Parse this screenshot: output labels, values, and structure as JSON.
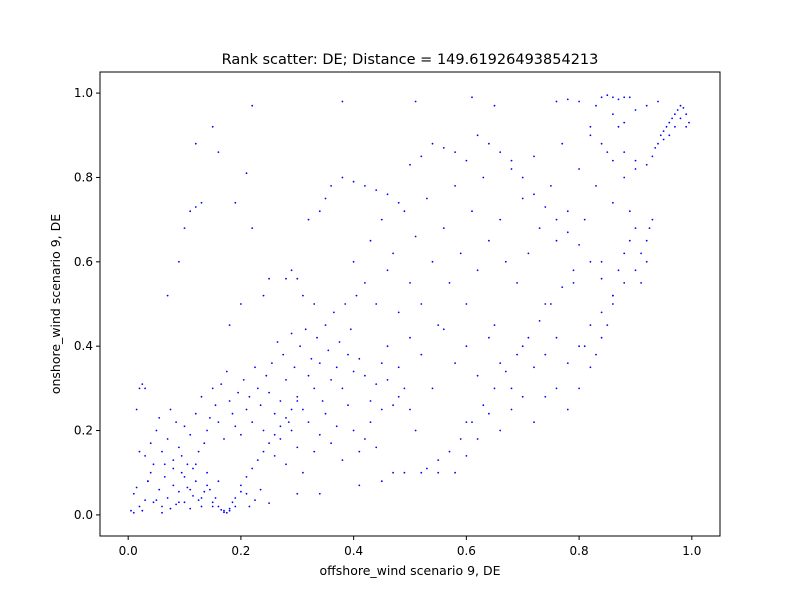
{
  "chart_data": {
    "type": "scatter",
    "title": "Rank scatter: DE; Distance = 149.61926493854213",
    "xlabel": "offshore_wind scenario 9, DE",
    "ylabel": "onshore_wind scenario 9, DE",
    "xlim": [
      -0.05,
      1.05
    ],
    "ylim": [
      -0.05,
      1.05
    ],
    "x_ticks": [
      0.0,
      0.2,
      0.4,
      0.6,
      0.8,
      1.0
    ],
    "x_tick_labels": [
      "0.0",
      "0.2",
      "0.4",
      "0.6",
      "0.8",
      "1.0"
    ],
    "y_ticks": [
      0.0,
      0.2,
      0.4,
      0.6,
      0.8,
      1.0
    ],
    "y_tick_labels": [
      "0.0",
      "0.2",
      "0.4",
      "0.6",
      "0.8",
      "1.0"
    ],
    "grid": false,
    "marker_color": "#0000ff",
    "points": [
      [
        0.005,
        0.01
      ],
      [
        0.01,
        0.005
      ],
      [
        0.01,
        0.05
      ],
      [
        0.015,
        0.065
      ],
      [
        0.02,
        0.02
      ],
      [
        0.025,
        0.01
      ],
      [
        0.03,
        0.035
      ],
      [
        0.035,
        0.08
      ],
      [
        0.04,
        0.1
      ],
      [
        0.045,
        0.12
      ],
      [
        0.05,
        0.035
      ],
      [
        0.055,
        0.06
      ],
      [
        0.06,
        0.02
      ],
      [
        0.065,
        0.09
      ],
      [
        0.07,
        0.04
      ],
      [
        0.075,
        0.015
      ],
      [
        0.08,
        0.07
      ],
      [
        0.085,
        0.025
      ],
      [
        0.09,
        0.055
      ],
      [
        0.095,
        0.1
      ],
      [
        0.1,
        0.03
      ],
      [
        0.105,
        0.065
      ],
      [
        0.11,
        0.015
      ],
      [
        0.115,
        0.045
      ],
      [
        0.12,
        0.08
      ],
      [
        0.125,
        0.035
      ],
      [
        0.13,
        0.02
      ],
      [
        0.135,
        0.055
      ],
      [
        0.14,
        0.1
      ],
      [
        0.145,
        0.06
      ],
      [
        0.15,
        0.02
      ],
      [
        0.155,
        0.04
      ],
      [
        0.16,
        0.08
      ],
      [
        0.165,
        0.012
      ],
      [
        0.17,
        0.01
      ],
      [
        0.175,
        0.005
      ],
      [
        0.18,
        0.015
      ],
      [
        0.185,
        0.03
      ],
      [
        0.19,
        0.02
      ],
      [
        0.2,
        0.055
      ],
      [
        0.21,
        0.05
      ],
      [
        0.215,
        0.02
      ],
      [
        0.225,
        0.035
      ],
      [
        0.235,
        0.06
      ],
      [
        0.25,
        0.028
      ],
      [
        0.02,
        0.15
      ],
      [
        0.03,
        0.14
      ],
      [
        0.04,
        0.17
      ],
      [
        0.05,
        0.2
      ],
      [
        0.055,
        0.23
      ],
      [
        0.06,
        0.15
      ],
      [
        0.065,
        0.12
      ],
      [
        0.07,
        0.18
      ],
      [
        0.075,
        0.25
      ],
      [
        0.08,
        0.13
      ],
      [
        0.085,
        0.22
      ],
      [
        0.09,
        0.16
      ],
      [
        0.095,
        0.14
      ],
      [
        0.1,
        0.21
      ],
      [
        0.105,
        0.12
      ],
      [
        0.11,
        0.19
      ],
      [
        0.115,
        0.11
      ],
      [
        0.12,
        0.24
      ],
      [
        0.125,
        0.15
      ],
      [
        0.13,
        0.28
      ],
      [
        0.135,
        0.17
      ],
      [
        0.14,
        0.2
      ],
      [
        0.145,
        0.23
      ],
      [
        0.15,
        0.3
      ],
      [
        0.155,
        0.26
      ],
      [
        0.16,
        0.22
      ],
      [
        0.165,
        0.31
      ],
      [
        0.17,
        0.18
      ],
      [
        0.175,
        0.34
      ],
      [
        0.18,
        0.27
      ],
      [
        0.185,
        0.24
      ],
      [
        0.19,
        0.21
      ],
      [
        0.195,
        0.29
      ],
      [
        0.2,
        0.19
      ],
      [
        0.205,
        0.32
      ],
      [
        0.21,
        0.25
      ],
      [
        0.215,
        0.28
      ],
      [
        0.22,
        0.22
      ],
      [
        0.225,
        0.35
      ],
      [
        0.23,
        0.3
      ],
      [
        0.235,
        0.26
      ],
      [
        0.24,
        0.2
      ],
      [
        0.245,
        0.33
      ],
      [
        0.25,
        0.29
      ],
      [
        0.255,
        0.36
      ],
      [
        0.26,
        0.24
      ],
      [
        0.265,
        0.41
      ],
      [
        0.27,
        0.27
      ],
      [
        0.275,
        0.38
      ],
      [
        0.28,
        0.32
      ],
      [
        0.285,
        0.22
      ],
      [
        0.29,
        0.43
      ],
      [
        0.295,
        0.35
      ],
      [
        0.3,
        0.28
      ],
      [
        0.305,
        0.4
      ],
      [
        0.31,
        0.25
      ],
      [
        0.315,
        0.44
      ],
      [
        0.32,
        0.33
      ],
      [
        0.325,
        0.37
      ],
      [
        0.33,
        0.3
      ],
      [
        0.335,
        0.42
      ],
      [
        0.34,
        0.36
      ],
      [
        0.345,
        0.27
      ],
      [
        0.35,
        0.45
      ],
      [
        0.355,
        0.39
      ],
      [
        0.36,
        0.32
      ],
      [
        0.365,
        0.48
      ],
      [
        0.37,
        0.35
      ],
      [
        0.375,
        0.41
      ],
      [
        0.38,
        0.3
      ],
      [
        0.385,
        0.5
      ],
      [
        0.39,
        0.38
      ],
      [
        0.395,
        0.44
      ],
      [
        0.4,
        0.34
      ],
      [
        0.405,
        0.52
      ],
      [
        0.26,
        0.14
      ],
      [
        0.27,
        0.18
      ],
      [
        0.28,
        0.12
      ],
      [
        0.29,
        0.2
      ],
      [
        0.3,
        0.16
      ],
      [
        0.31,
        0.1
      ],
      [
        0.32,
        0.22
      ],
      [
        0.33,
        0.15
      ],
      [
        0.34,
        0.19
      ],
      [
        0.35,
        0.24
      ],
      [
        0.36,
        0.17
      ],
      [
        0.37,
        0.21
      ],
      [
        0.38,
        0.13
      ],
      [
        0.39,
        0.26
      ],
      [
        0.4,
        0.2
      ],
      [
        0.41,
        0.15
      ],
      [
        0.42,
        0.18
      ],
      [
        0.43,
        0.22
      ],
      [
        0.44,
        0.16
      ],
      [
        0.45,
        0.25
      ],
      [
        0.3,
        0.05
      ],
      [
        0.34,
        0.05
      ],
      [
        0.41,
        0.07
      ],
      [
        0.45,
        0.08
      ],
      [
        0.47,
        0.1
      ],
      [
        0.49,
        0.1
      ],
      [
        0.52,
        0.1
      ],
      [
        0.55,
        0.1
      ],
      [
        0.58,
        0.1
      ],
      [
        0.6,
        0.14
      ],
      [
        0.4,
        0.6
      ],
      [
        0.42,
        0.55
      ],
      [
        0.43,
        0.65
      ],
      [
        0.44,
        0.5
      ],
      [
        0.45,
        0.7
      ],
      [
        0.46,
        0.58
      ],
      [
        0.47,
        0.62
      ],
      [
        0.48,
        0.48
      ],
      [
        0.49,
        0.72
      ],
      [
        0.5,
        0.55
      ],
      [
        0.51,
        0.66
      ],
      [
        0.52,
        0.5
      ],
      [
        0.53,
        0.75
      ],
      [
        0.54,
        0.6
      ],
      [
        0.55,
        0.45
      ],
      [
        0.56,
        0.68
      ],
      [
        0.57,
        0.55
      ],
      [
        0.58,
        0.78
      ],
      [
        0.59,
        0.62
      ],
      [
        0.6,
        0.5
      ],
      [
        0.61,
        0.72
      ],
      [
        0.62,
        0.58
      ],
      [
        0.63,
        0.8
      ],
      [
        0.64,
        0.65
      ],
      [
        0.65,
        0.45
      ],
      [
        0.66,
        0.7
      ],
      [
        0.67,
        0.6
      ],
      [
        0.68,
        0.82
      ],
      [
        0.69,
        0.55
      ],
      [
        0.7,
        0.75
      ],
      [
        0.71,
        0.62
      ],
      [
        0.72,
        0.85
      ],
      [
        0.73,
        0.68
      ],
      [
        0.74,
        0.5
      ],
      [
        0.75,
        0.78
      ],
      [
        0.76,
        0.65
      ],
      [
        0.77,
        0.88
      ],
      [
        0.78,
        0.72
      ],
      [
        0.79,
        0.55
      ],
      [
        0.8,
        0.82
      ],
      [
        0.81,
        0.7
      ],
      [
        0.82,
        0.9
      ],
      [
        0.83,
        0.78
      ],
      [
        0.84,
        0.6
      ],
      [
        0.85,
        0.86
      ],
      [
        0.86,
        0.74
      ],
      [
        0.87,
        0.92
      ],
      [
        0.88,
        0.8
      ],
      [
        0.89,
        0.65
      ],
      [
        0.9,
        0.84
      ],
      [
        0.46,
        0.4
      ],
      [
        0.48,
        0.35
      ],
      [
        0.5,
        0.42
      ],
      [
        0.52,
        0.38
      ],
      [
        0.54,
        0.3
      ],
      [
        0.56,
        0.44
      ],
      [
        0.58,
        0.36
      ],
      [
        0.6,
        0.4
      ],
      [
        0.62,
        0.33
      ],
      [
        0.64,
        0.42
      ],
      [
        0.66,
        0.36
      ],
      [
        0.68,
        0.3
      ],
      [
        0.7,
        0.4
      ],
      [
        0.72,
        0.35
      ],
      [
        0.74,
        0.38
      ],
      [
        0.76,
        0.42
      ],
      [
        0.78,
        0.36
      ],
      [
        0.8,
        0.4
      ],
      [
        0.82,
        0.45
      ],
      [
        0.84,
        0.48
      ],
      [
        0.86,
        0.52
      ],
      [
        0.88,
        0.55
      ],
      [
        0.9,
        0.58
      ],
      [
        0.91,
        0.62
      ],
      [
        0.92,
        0.65
      ],
      [
        0.925,
        0.68
      ],
      [
        0.93,
        0.7
      ],
      [
        0.92,
        0.6
      ],
      [
        0.91,
        0.55
      ],
      [
        0.9,
        0.68
      ],
      [
        0.89,
        0.72
      ],
      [
        0.88,
        0.62
      ],
      [
        0.87,
        0.58
      ],
      [
        0.86,
        0.5
      ],
      [
        0.85,
        0.45
      ],
      [
        0.84,
        0.42
      ],
      [
        0.83,
        0.38
      ],
      [
        0.82,
        0.35
      ],
      [
        0.81,
        0.4
      ],
      [
        0.8,
        0.3
      ],
      [
        0.78,
        0.25
      ],
      [
        0.76,
        0.3
      ],
      [
        0.74,
        0.28
      ],
      [
        0.72,
        0.22
      ],
      [
        0.7,
        0.28
      ],
      [
        0.68,
        0.25
      ],
      [
        0.66,
        0.2
      ],
      [
        0.64,
        0.24
      ],
      [
        0.62,
        0.18
      ],
      [
        0.6,
        0.22
      ],
      [
        0.92,
        0.83
      ],
      [
        0.93,
        0.85
      ],
      [
        0.935,
        0.87
      ],
      [
        0.94,
        0.88
      ],
      [
        0.945,
        0.9
      ],
      [
        0.95,
        0.91
      ],
      [
        0.955,
        0.92
      ],
      [
        0.96,
        0.93
      ],
      [
        0.965,
        0.94
      ],
      [
        0.97,
        0.95
      ],
      [
        0.975,
        0.96
      ],
      [
        0.98,
        0.97
      ],
      [
        0.985,
        0.965
      ],
      [
        0.99,
        0.95
      ],
      [
        0.995,
        0.93
      ],
      [
        0.99,
        0.92
      ],
      [
        0.98,
        0.94
      ],
      [
        0.97,
        0.92
      ],
      [
        0.96,
        0.9
      ],
      [
        0.95,
        0.89
      ],
      [
        0.84,
        0.99
      ],
      [
        0.85,
        0.995
      ],
      [
        0.86,
        0.99
      ],
      [
        0.87,
        0.985
      ],
      [
        0.88,
        0.99
      ],
      [
        0.76,
        0.98
      ],
      [
        0.78,
        0.985
      ],
      [
        0.8,
        0.98
      ],
      [
        0.83,
        0.97
      ],
      [
        0.89,
        0.99
      ],
      [
        0.86,
        0.95
      ],
      [
        0.88,
        0.93
      ],
      [
        0.9,
        0.96
      ],
      [
        0.92,
        0.97
      ],
      [
        0.94,
        0.98
      ],
      [
        0.82,
        0.92
      ],
      [
        0.84,
        0.88
      ],
      [
        0.86,
        0.84
      ],
      [
        0.88,
        0.86
      ],
      [
        0.9,
        0.82
      ],
      [
        0.12,
        0.88
      ],
      [
        0.15,
        0.92
      ],
      [
        0.16,
        0.86
      ],
      [
        0.22,
        0.97
      ],
      [
        0.38,
        0.98
      ],
      [
        0.51,
        0.98
      ],
      [
        0.61,
        0.99
      ],
      [
        0.65,
        0.97
      ],
      [
        0.21,
        0.81
      ],
      [
        0.19,
        0.74
      ],
      [
        0.13,
        0.74
      ],
      [
        0.12,
        0.73
      ],
      [
        0.11,
        0.72
      ],
      [
        0.1,
        0.68
      ],
      [
        0.09,
        0.6
      ],
      [
        0.07,
        0.52
      ],
      [
        0.18,
        0.45
      ],
      [
        0.2,
        0.5
      ],
      [
        0.22,
        0.68
      ],
      [
        0.24,
        0.52
      ],
      [
        0.25,
        0.56
      ],
      [
        0.28,
        0.56
      ],
      [
        0.29,
        0.58
      ],
      [
        0.3,
        0.56
      ],
      [
        0.31,
        0.52
      ],
      [
        0.33,
        0.5
      ],
      [
        0.32,
        0.7
      ],
      [
        0.34,
        0.72
      ],
      [
        0.35,
        0.75
      ],
      [
        0.36,
        0.78
      ],
      [
        0.38,
        0.8
      ],
      [
        0.4,
        0.79
      ],
      [
        0.42,
        0.78
      ],
      [
        0.44,
        0.77
      ],
      [
        0.46,
        0.76
      ],
      [
        0.48,
        0.74
      ],
      [
        0.5,
        0.83
      ],
      [
        0.52,
        0.85
      ],
      [
        0.54,
        0.88
      ],
      [
        0.56,
        0.87
      ],
      [
        0.58,
        0.86
      ],
      [
        0.6,
        0.84
      ],
      [
        0.62,
        0.9
      ],
      [
        0.64,
        0.88
      ],
      [
        0.66,
        0.86
      ],
      [
        0.68,
        0.84
      ],
      [
        0.7,
        0.8
      ],
      [
        0.72,
        0.76
      ],
      [
        0.74,
        0.73
      ],
      [
        0.76,
        0.7
      ],
      [
        0.78,
        0.67
      ],
      [
        0.8,
        0.64
      ],
      [
        0.82,
        0.6
      ],
      [
        0.84,
        0.56
      ],
      [
        0.86,
        0.52
      ],
      [
        0.79,
        0.58
      ],
      [
        0.77,
        0.54
      ],
      [
        0.75,
        0.5
      ],
      [
        0.73,
        0.46
      ],
      [
        0.71,
        0.42
      ],
      [
        0.69,
        0.38
      ],
      [
        0.67,
        0.34
      ],
      [
        0.65,
        0.3
      ],
      [
        0.63,
        0.26
      ],
      [
        0.61,
        0.22
      ],
      [
        0.59,
        0.18
      ],
      [
        0.57,
        0.15
      ],
      [
        0.55,
        0.13
      ],
      [
        0.53,
        0.11
      ],
      [
        0.51,
        0.2
      ],
      [
        0.5,
        0.25
      ],
      [
        0.49,
        0.3
      ],
      [
        0.48,
        0.28
      ],
      [
        0.47,
        0.26
      ],
      [
        0.46,
        0.32
      ],
      [
        0.45,
        0.36
      ],
      [
        0.44,
        0.31
      ],
      [
        0.43,
        0.27
      ],
      [
        0.42,
        0.33
      ],
      [
        0.41,
        0.37
      ],
      [
        0.02,
        0.3
      ],
      [
        0.025,
        0.31
      ],
      [
        0.03,
        0.3
      ],
      [
        0.015,
        0.25
      ],
      [
        0.035,
        0.08
      ],
      [
        0.045,
        0.03
      ],
      [
        0.06,
        0.005
      ],
      [
        0.08,
        0.11
      ],
      [
        0.09,
        0.03
      ],
      [
        0.1,
        0.09
      ],
      [
        0.11,
        0.06
      ],
      [
        0.12,
        0.12
      ],
      [
        0.13,
        0.04
      ],
      [
        0.14,
        0.07
      ],
      [
        0.15,
        0.03
      ],
      [
        0.16,
        0.02
      ],
      [
        0.17,
        0.006
      ],
      [
        0.18,
        0.01
      ],
      [
        0.19,
        0.04
      ],
      [
        0.2,
        0.07
      ],
      [
        0.21,
        0.09
      ],
      [
        0.22,
        0.11
      ],
      [
        0.23,
        0.13
      ],
      [
        0.24,
        0.15
      ],
      [
        0.25,
        0.17
      ],
      [
        0.26,
        0.19
      ],
      [
        0.27,
        0.21
      ],
      [
        0.28,
        0.23
      ],
      [
        0.29,
        0.25
      ],
      [
        0.3,
        0.27
      ]
    ]
  }
}
